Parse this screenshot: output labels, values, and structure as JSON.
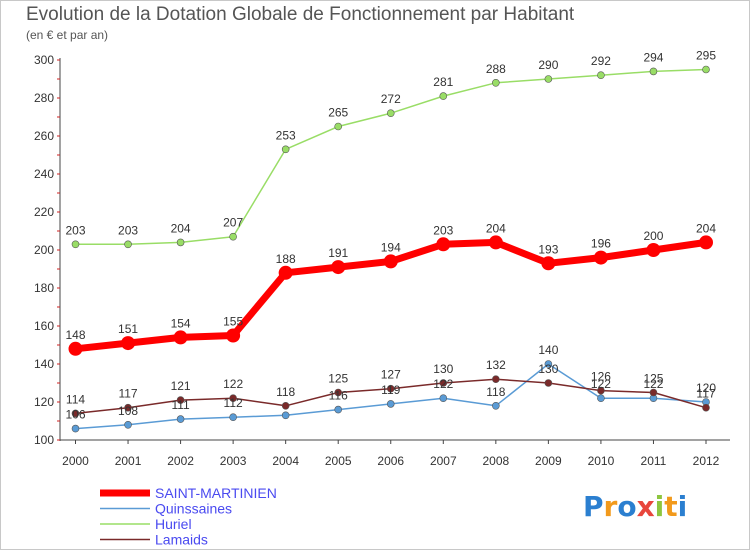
{
  "title": "Evolution de la Dotation Globale de Fonctionnement par Habitant",
  "subtitle": "(en € et par an)",
  "logo_text": "Proxiti",
  "colors": {
    "SAINT-MARTINIEN": "#ff0000",
    "Quinssaines": "#5a9bd5",
    "Huriel": "#99dd66",
    "Lamaids": "#7a2a2a"
  },
  "chart_data": {
    "type": "line",
    "title": "Evolution de la Dotation Globale de Fonctionnement par Habitant",
    "subtitle": "(en € et par an)",
    "xlabel": "",
    "ylabel": "",
    "x": [
      "2000",
      "2001",
      "2002",
      "2003",
      "2004",
      "2005",
      "2006",
      "2007",
      "2008",
      "2009",
      "2010",
      "2011",
      "2012"
    ],
    "ylim": [
      100,
      300
    ],
    "yticks": [
      100,
      120,
      140,
      160,
      180,
      200,
      220,
      240,
      260,
      280,
      300
    ],
    "grid": false,
    "legend_position": "bottom-left",
    "series": [
      {
        "name": "SAINT-MARTINIEN",
        "values": [
          148,
          151,
          154,
          155,
          188,
          191,
          194,
          203,
          204,
          193,
          196,
          200,
          204
        ]
      },
      {
        "name": "Quinssaines",
        "values": [
          106,
          108,
          111,
          112,
          113,
          116,
          119,
          122,
          118,
          140,
          122,
          122,
          120
        ]
      },
      {
        "name": "Huriel",
        "values": [
          203,
          203,
          204,
          207,
          253,
          265,
          272,
          281,
          288,
          290,
          292,
          294,
          295
        ]
      },
      {
        "name": "Lamaids",
        "values": [
          114,
          117,
          121,
          122,
          118,
          125,
          127,
          130,
          132,
          130,
          126,
          125,
          117
        ]
      }
    ],
    "data_labels": {
      "SAINT-MARTINIEN": [
        "148",
        "151",
        "154",
        "155",
        "188",
        "191",
        "194",
        "203",
        "204",
        "193",
        "196",
        "200",
        "204"
      ],
      "Quinssaines": [
        "106",
        "108",
        "111",
        "112",
        "",
        "116",
        "119",
        "122",
        "118",
        "140",
        "122",
        "122",
        "120"
      ],
      "Huriel": [
        "203",
        "203",
        "204",
        "207",
        "253",
        "265",
        "272",
        "281",
        "288",
        "290",
        "292",
        "294",
        "295"
      ],
      "Lamaids": [
        "114",
        "117",
        "121",
        "122",
        "118",
        "125",
        "127",
        "130",
        "132",
        "130",
        "126",
        "125",
        "117"
      ]
    }
  }
}
